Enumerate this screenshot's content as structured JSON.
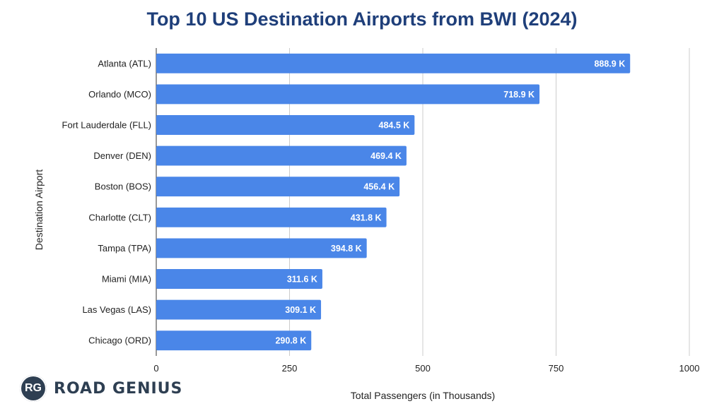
{
  "chart_data": {
    "type": "bar",
    "orientation": "horizontal",
    "title": "Top 10 US Destination Airports from BWI (2024)",
    "xlabel": "Total Passengers (in Thousands)",
    "ylabel": "Destination Airport",
    "xlim": [
      0,
      1000
    ],
    "xticks": [
      0,
      250,
      500,
      750,
      1000
    ],
    "grid": true,
    "categories": [
      "Atlanta (ATL)",
      "Orlando (MCO)",
      "Fort Lauderdale (FLL)",
      "Denver (DEN)",
      "Boston (BOS)",
      "Charlotte (CLT)",
      "Tampa (TPA)",
      "Miami (MIA)",
      "Las Vegas (LAS)",
      "Chicago (ORD)"
    ],
    "values": [
      888.9,
      718.9,
      484.5,
      469.4,
      456.4,
      431.8,
      394.8,
      311.6,
      309.1,
      290.8
    ],
    "value_labels": [
      "888.9 K",
      "718.9 K",
      "484.5 K",
      "469.4 K",
      "456.4 K",
      "431.8 K",
      "394.8 K",
      "311.6 K",
      "309.1 K",
      "290.8 K"
    ],
    "bar_color": "#4a86e8"
  },
  "branding": {
    "badge": "RG",
    "name": "ROAD GENIUS"
  }
}
